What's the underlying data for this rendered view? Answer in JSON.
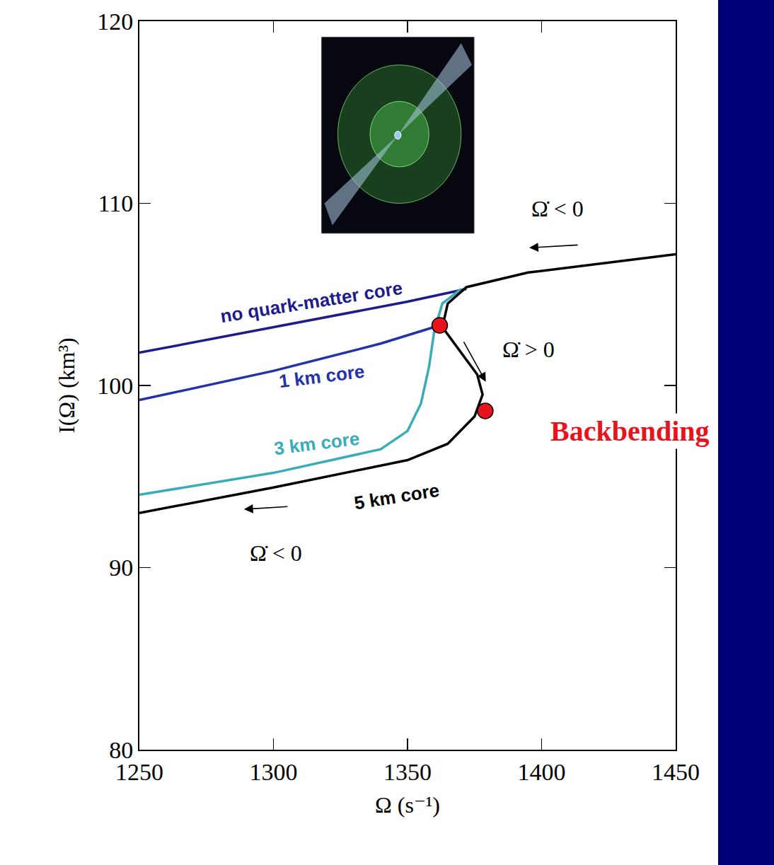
{
  "chart_data": {
    "type": "line",
    "x_label": "Ω (s⁻¹)",
    "y_label": "I(Ω) (km³)",
    "xlim": [
      1250,
      1450
    ],
    "ylim": [
      80,
      120
    ],
    "xticks": [
      1250,
      1300,
      1350,
      1400,
      1450
    ],
    "yticks": [
      80,
      90,
      100,
      110,
      120
    ],
    "grid": false,
    "series": [
      {
        "name": "no quark-matter core",
        "color": "#1c1c8c",
        "line_style": "solid",
        "x": [
          1250,
          1300,
          1350,
          1372
        ],
        "values": [
          101.8,
          103.2,
          104.6,
          105.3
        ]
      },
      {
        "name": "1 km core",
        "color": "#2233aa",
        "line_style": "solid",
        "x": [
          1250,
          1300,
          1340,
          1355,
          1362
        ],
        "values": [
          99.2,
          100.8,
          102.3,
          103.0,
          103.3
        ]
      },
      {
        "name": "3 km core",
        "color": "#3aacb8",
        "line_style": "solid",
        "x": [
          1250,
          1300,
          1340,
          1350,
          1355,
          1358,
          1360,
          1363,
          1370
        ],
        "values": [
          94.0,
          95.2,
          96.5,
          97.5,
          99.0,
          101.0,
          103.0,
          104.5,
          105.3
        ]
      },
      {
        "name": "5 km core",
        "color": "#000000",
        "line_style": "solid",
        "x": [
          1250,
          1300,
          1350,
          1365,
          1375,
          1378,
          1376,
          1370,
          1363,
          1365,
          1372,
          1395,
          1450
        ],
        "values": [
          93.0,
          94.4,
          95.9,
          96.8,
          98.3,
          99.5,
          100.6,
          101.8,
          103.2,
          104.5,
          105.4,
          106.2,
          107.2
        ]
      },
      {
        "type": "scatter",
        "marker": "circle",
        "color": "#e8131b",
        "x": [
          1362,
          1379
        ],
        "values": [
          103.3,
          98.6
        ]
      }
    ],
    "annotations": [
      {
        "text": "no quark-matter core",
        "x": 1314,
        "y": 104.6,
        "color": "#1c1c8c"
      },
      {
        "text": "1 km core",
        "x": 1318,
        "y": 100.5,
        "color": "#2233aa"
      },
      {
        "text": "3 km core",
        "x": 1316,
        "y": 96.8,
        "color": "#3aacb8"
      },
      {
        "text": "5 km core",
        "x": 1346,
        "y": 93.9,
        "color": "#000000"
      },
      {
        "text": "Ω̇ < 0",
        "x": 1406,
        "y": 109.7,
        "color": "#000000"
      },
      {
        "text": "Ω̇ > 0",
        "x": 1395,
        "y": 102.0,
        "color": "#000000"
      },
      {
        "text": "Ω̇ < 0",
        "x": 1301,
        "y": 90.8,
        "color": "#000000"
      },
      {
        "text": "Backbending",
        "x": 1433,
        "y": 97.5,
        "color": "#e8131b"
      }
    ]
  }
}
